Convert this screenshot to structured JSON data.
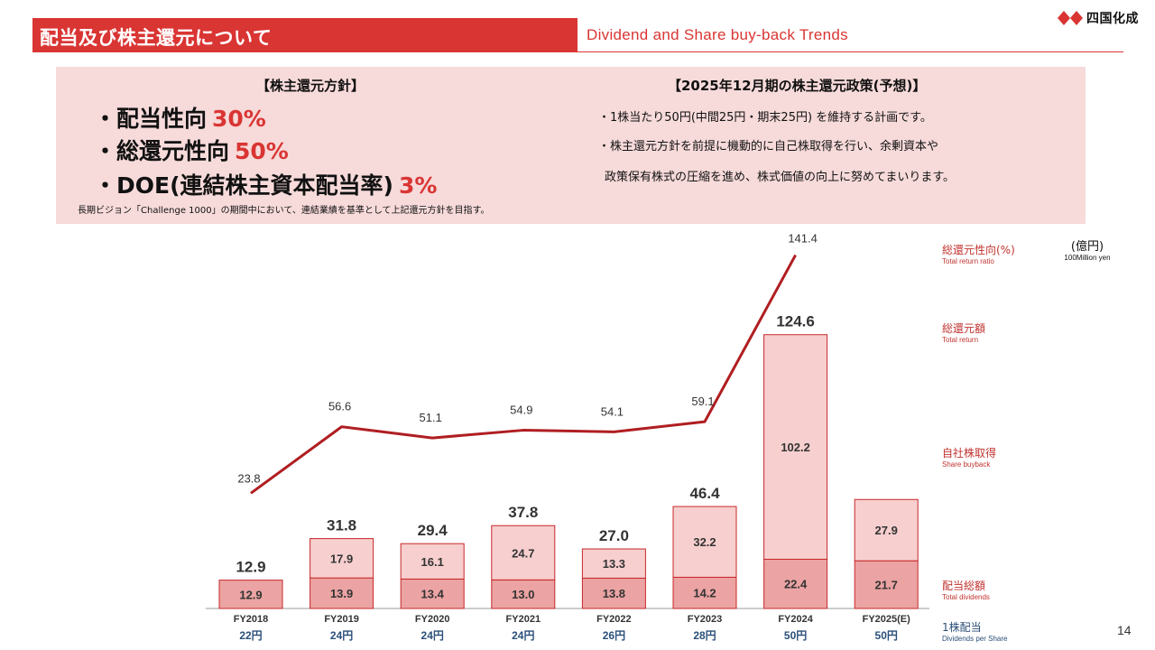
{
  "header": {
    "title_jp": "配当及び株主還元について",
    "title_en": "Dividend and Share buy-back Trends",
    "logo_text": "四国化成"
  },
  "policy": {
    "heading": "【株主還元方針】",
    "items": [
      {
        "label": "・配当性向",
        "value": "30%"
      },
      {
        "label": "・総還元性向",
        "value": "50%"
      },
      {
        "label": "・DOE(連結株主資本配当率)",
        "value": "3%"
      }
    ],
    "note": "長期ビジョン「Challenge 1000」の期間中において、連結業績を基準として上記還元方針を目指す。"
  },
  "forecast": {
    "heading": "【2025年12月期の株主還元政策(予想)】",
    "lines": [
      "・1株当たり50円(中間25円・期末25円) を維持する計画です。",
      "・株主還元方針を前提に機動的に自己株取得を行い、余剰資本や",
      "政策保有株式の圧縮を進め、株式価値の向上に努めてまいります。"
    ]
  },
  "legend": {
    "total_return_ratio": {
      "jp": "総還元性向(%)",
      "en": "Total return ratio"
    },
    "total_return": {
      "jp": "総還元額",
      "en": "Total return"
    },
    "share_buyback": {
      "jp": "自社株取得",
      "en": "Share buyback"
    },
    "total_dividends": {
      "jp": "配当総額",
      "en": "Total dividends"
    },
    "dps": {
      "jp": "1株配当",
      "en": "Dividends per Share"
    }
  },
  "unit": {
    "jp": "(億円)",
    "en": "100Million yen"
  },
  "page_number": "14",
  "colors": {
    "accent_red": "#d93533",
    "dividend_fill": "#eba3a3",
    "buyback_fill": "#f7cfcf",
    "bar_stroke": "#c8282a",
    "line": "#b01e22",
    "dps_blue": "#2b4f79"
  },
  "chart_data": {
    "type": "bar",
    "stacked": true,
    "categories": [
      "FY2018",
      "FY2019",
      "FY2020",
      "FY2021",
      "FY2022",
      "FY2023",
      "FY2024",
      "FY2025(E)"
    ],
    "series": [
      {
        "name": "配当総額",
        "values": [
          12.9,
          13.9,
          13.4,
          13.0,
          13.8,
          14.2,
          22.4,
          21.7
        ]
      },
      {
        "name": "自社株取得",
        "values": [
          null,
          17.9,
          16.1,
          24.7,
          13.3,
          32.2,
          102.2,
          27.9
        ]
      }
    ],
    "totals": [
      12.9,
      31.8,
      29.4,
      37.8,
      27.0,
      46.4,
      124.6,
      null
    ],
    "line_series": {
      "name": "総還元性向(%)",
      "values": [
        23.8,
        56.6,
        51.1,
        54.9,
        54.1,
        59.1,
        141.4,
        null
      ]
    },
    "dps": [
      "22円",
      "24円",
      "24円",
      "24円",
      "26円",
      "28円",
      "50円",
      "50円"
    ]
  }
}
